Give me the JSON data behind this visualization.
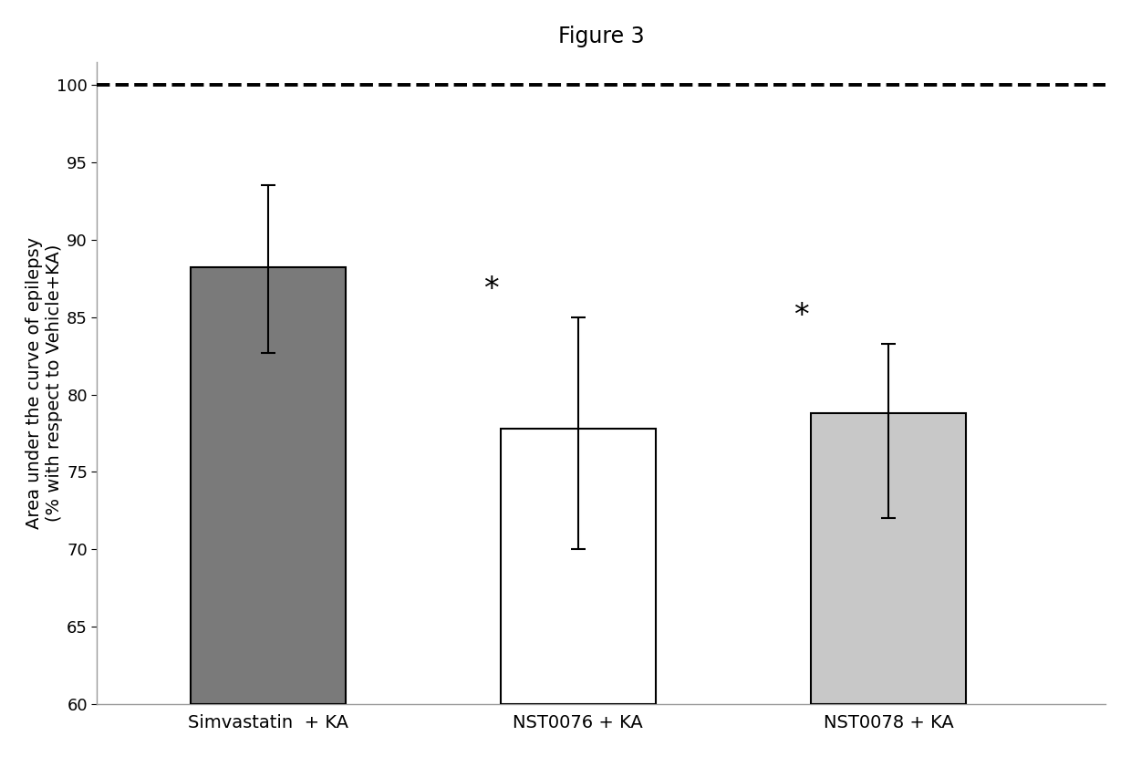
{
  "title": "Figure 3",
  "ylabel_line1": "Area under the curve of epilepsy",
  "ylabel_line2": "(% with respect to Vehicle+KA)",
  "categories": [
    "Simvastatin  + KA",
    "NST0076 + KA",
    "NST0078 + KA"
  ],
  "values": [
    88.2,
    77.8,
    78.8
  ],
  "errors_upper": [
    5.3,
    7.2,
    4.5
  ],
  "errors_lower": [
    5.5,
    7.8,
    6.8
  ],
  "bar_colors": [
    "#7a7a7a",
    "#ffffff",
    "#c8c8c8"
  ],
  "bar_edgecolors": [
    "#000000",
    "#000000",
    "#000000"
  ],
  "ylim": [
    60,
    101.5
  ],
  "yticks": [
    60,
    65,
    70,
    75,
    80,
    85,
    90,
    95,
    100
  ],
  "dashed_line_y": 100,
  "significance": [
    false,
    true,
    true
  ],
  "title_fontsize": 17,
  "label_fontsize": 14,
  "tick_fontsize": 13,
  "bar_width": 0.5,
  "background_color": "#ffffff",
  "asterisk_fontsize": 24
}
